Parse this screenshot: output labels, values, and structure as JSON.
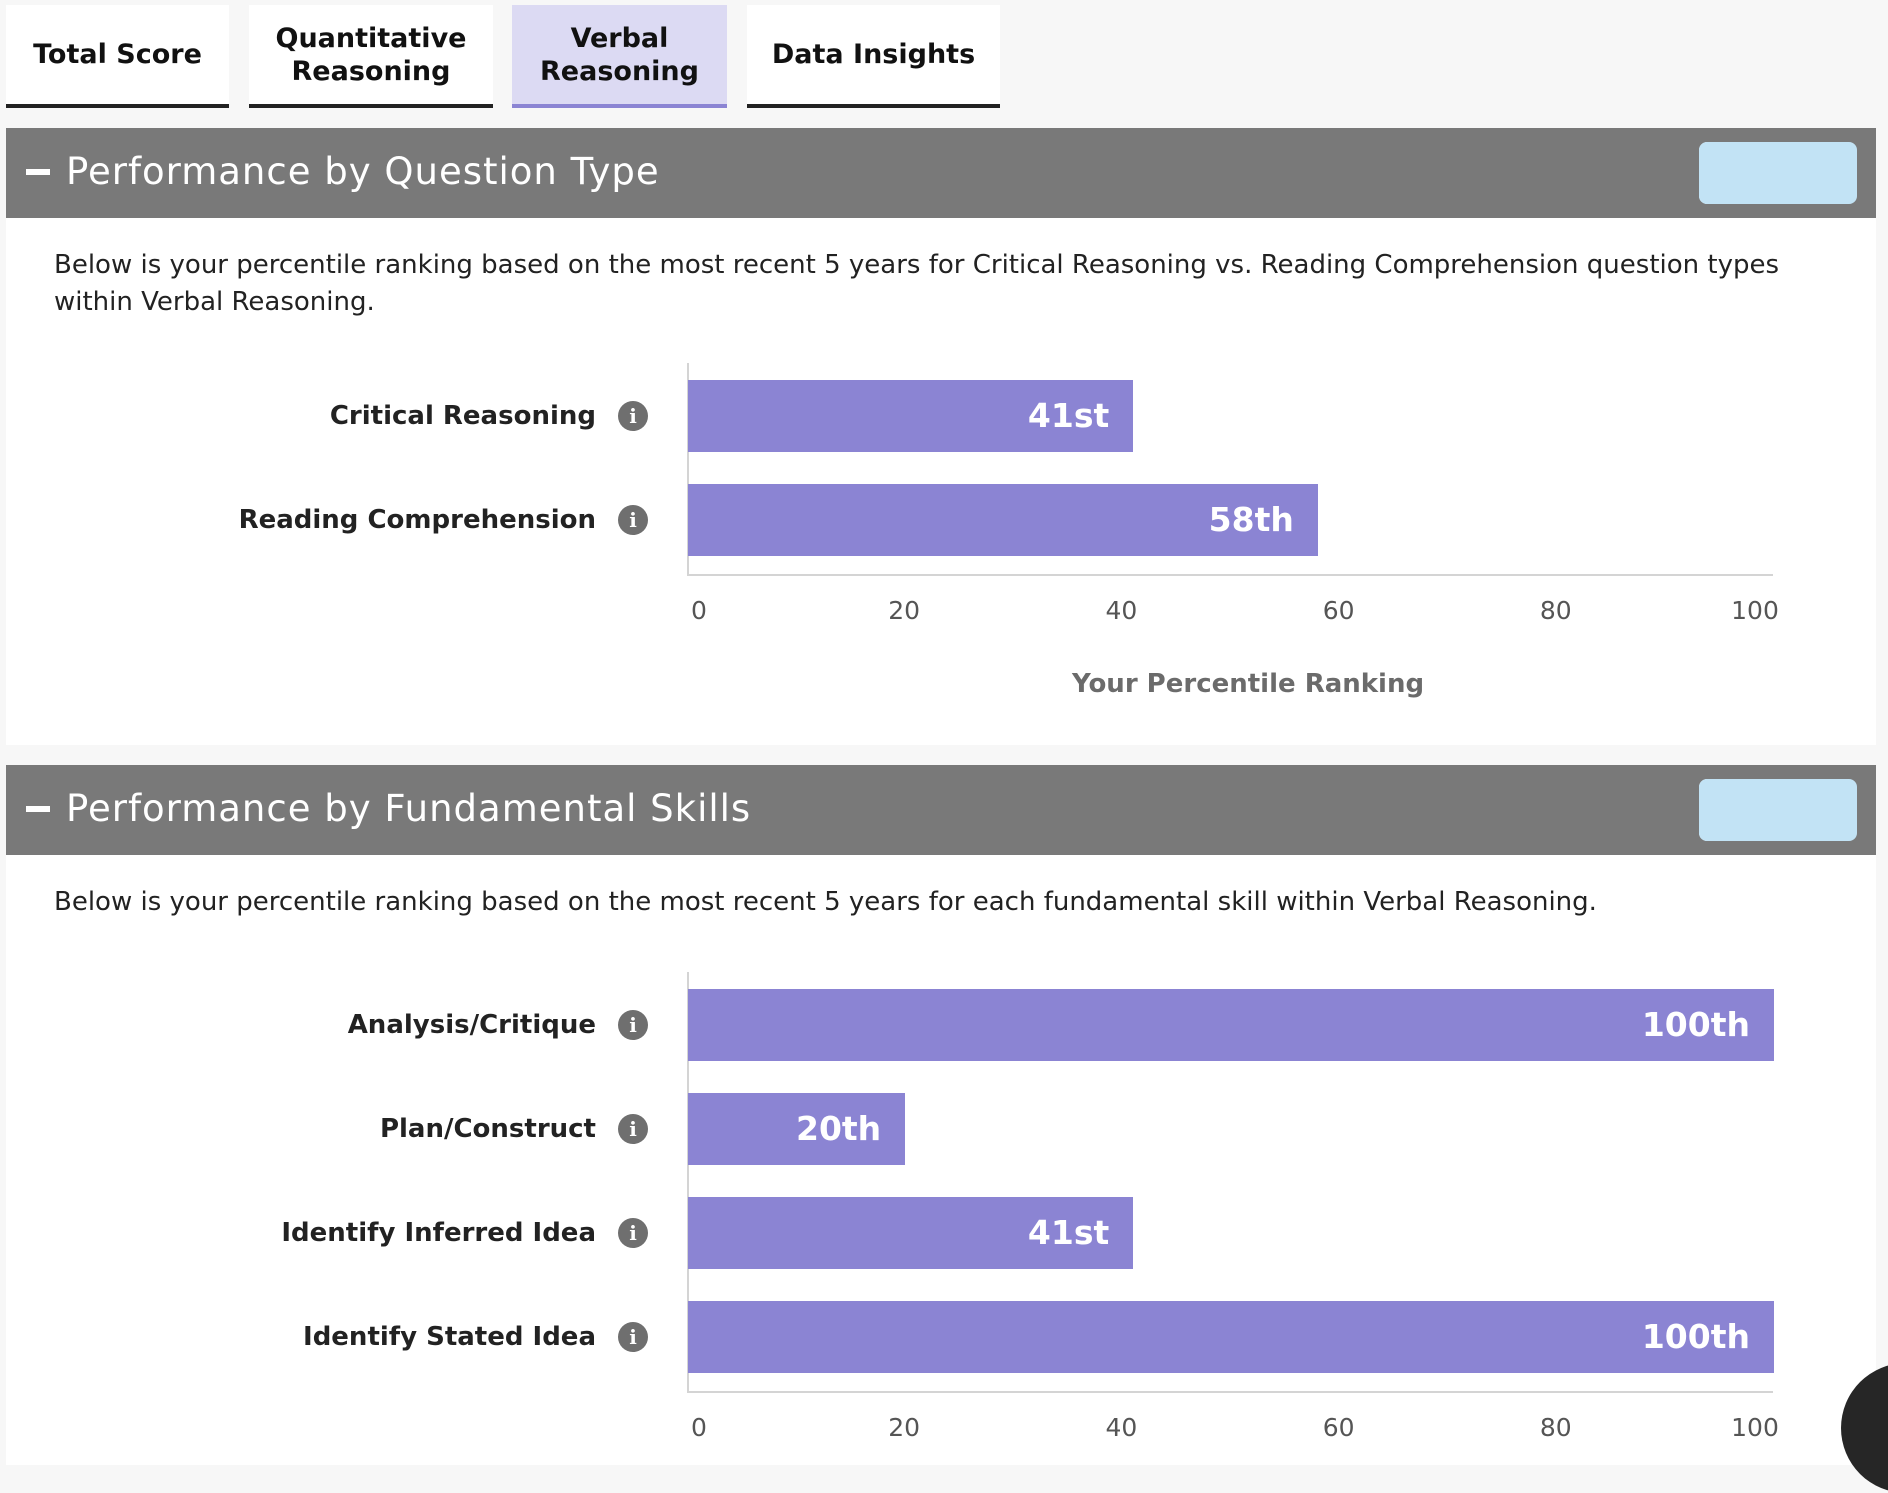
{
  "tabs": [
    {
      "label": "Total Score",
      "active": false
    },
    {
      "label": "Quantitative\nReasoning",
      "active": false
    },
    {
      "label": "Verbal\nReasoning",
      "active": true
    },
    {
      "label": "Data Insights",
      "active": false
    }
  ],
  "colors": {
    "bar": "#8b84d3",
    "header": "#797979",
    "active_tab": "#dcdaf3",
    "toggle_active": "#c2e3f5"
  },
  "sections": [
    {
      "title": "Performance by Question Type",
      "collapse_icon": "minus-icon",
      "view_toggle": {
        "chart_icon": "bar-chart-icon",
        "table_icon": "table-grid-icon",
        "selected": "chart"
      },
      "description": "Below is your percentile ranking based on the most recent 5 years for Critical Reasoning vs. Reading Comprehension question types within Verbal Reasoning.",
      "chart_data": {
        "type": "bar",
        "orientation": "horizontal",
        "categories": [
          "Critical Reasoning",
          "Reading Comprehension"
        ],
        "values": [
          41,
          58
        ],
        "value_labels": [
          "41st",
          "58th"
        ],
        "xlabel": "Your Percentile Ranking",
        "xlim": [
          0,
          100
        ],
        "xticks": [
          "0",
          "20",
          "40",
          "60",
          "80",
          "100"
        ]
      }
    },
    {
      "title": "Performance by Fundamental Skills",
      "collapse_icon": "minus-icon",
      "view_toggle": {
        "chart_icon": "bar-chart-icon",
        "table_icon": "table-grid-icon",
        "selected": "chart"
      },
      "description": "Below is your percentile ranking based on the most recent 5 years for each fundamental skill within Verbal Reasoning.",
      "chart_data": {
        "type": "bar",
        "orientation": "horizontal",
        "categories": [
          "Analysis/Critique",
          "Plan/Construct",
          "Identify Inferred Idea",
          "Identify Stated Idea"
        ],
        "values": [
          100,
          20,
          41,
          100
        ],
        "value_labels": [
          "100th",
          "20th",
          "41st",
          "100th"
        ],
        "xlabel": "",
        "xlim": [
          0,
          100
        ],
        "xticks": [
          "0",
          "20",
          "40",
          "60",
          "80",
          "100"
        ]
      }
    }
  ],
  "info_icon": "info-icon",
  "chat_widget": "chat-bubble-icon"
}
